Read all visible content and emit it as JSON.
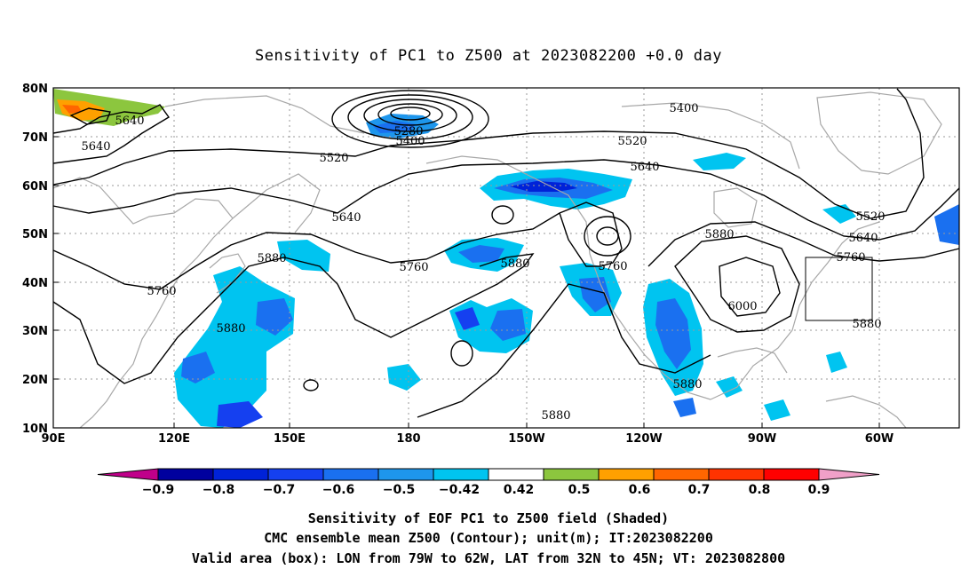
{
  "title": "Sensitivity of PC1 to Z500 at 2023082200 +0.0 day",
  "map": {
    "lat_labels": [
      "80N",
      "70N",
      "60N",
      "50N",
      "40N",
      "30N",
      "20N",
      "10N"
    ],
    "lon_labels": [
      "90E",
      "120E",
      "150E",
      "180",
      "150W",
      "120W",
      "90W",
      "60W"
    ],
    "lon_range": [
      "90E",
      "35W"
    ],
    "lat_range": [
      "10N",
      "80N"
    ],
    "grid": "dotted",
    "contour_labels": [
      "5640",
      "5640",
      "5280",
      "5400",
      "5400",
      "5520",
      "5520",
      "5640",
      "5640",
      "5520",
      "5640",
      "5760",
      "5880",
      "5760",
      "5880",
      "5760",
      "5880",
      "5760",
      "6000",
      "5880",
      "5880",
      "5880",
      "5880"
    ],
    "valid_area_box": {
      "lon": [
        "79W",
        "62W"
      ],
      "lat": [
        "32N",
        "45N"
      ]
    }
  },
  "colorbar": {
    "labels": [
      "−0.9",
      "−0.8",
      "−0.7",
      "−0.6",
      "−0.5",
      "−0.42",
      "0.42",
      "0.5",
      "0.6",
      "0.7",
      "0.8",
      "0.9"
    ],
    "colors": [
      "#c0008a",
      "#00009e",
      "#0022d8",
      "#1540f0",
      "#1a70f0",
      "#1e96ec",
      "#00c4f0",
      "#ffffff",
      "#8cc63e",
      "#ffa000",
      "#ff6600",
      "#ff3300",
      "#ff0000",
      "#f0a0c8"
    ]
  },
  "caption": {
    "line1": "Sensitivity of EOF PC1 to Z500 field (Shaded)",
    "line2": "CMC ensemble mean Z500 (Contour); unit(m); IT:2023082200",
    "line3": "Valid area (box): LON from 79W to 62W, LAT from 32N to 45N; VT: 2023082800"
  }
}
